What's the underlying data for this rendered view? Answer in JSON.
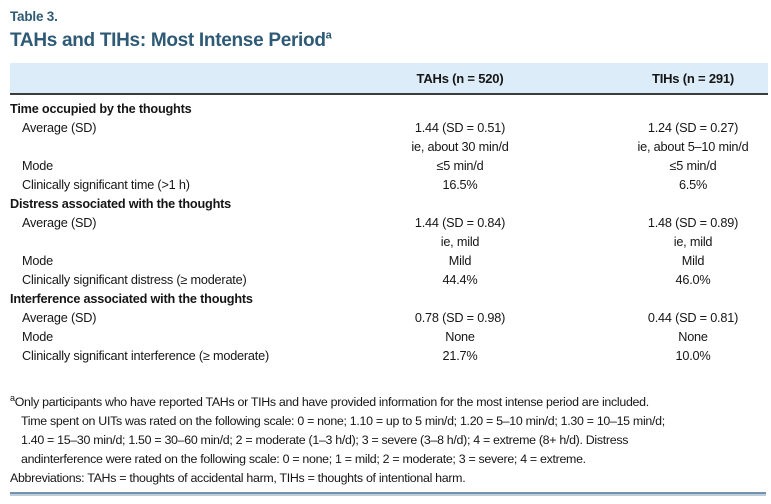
{
  "header": {
    "label": "Table 3.",
    "title": "TAHs and TIHs: Most Intense Period",
    "title_sup": "a"
  },
  "columns": {
    "tahs": "TAHs (n = 520)",
    "tihs": "TIHs (n = 291)"
  },
  "sections": [
    {
      "header": "Time occupied by the thoughts",
      "rows": [
        {
          "label": "Average (SD)",
          "tahs": "1.44 (SD = 0.51)",
          "tihs": "1.24 (SD = 0.27)"
        },
        {
          "label": "",
          "tahs": "ie, about 30 min/d",
          "tihs": "ie, about 5–10 min/d"
        },
        {
          "label": "Mode",
          "tahs": "≤5 min/d",
          "tihs": "≤5 min/d"
        },
        {
          "label": "Clinically significant time (>1 h)",
          "tahs": "16.5%",
          "tihs": "6.5%"
        }
      ]
    },
    {
      "header": "Distress associated with the thoughts",
      "rows": [
        {
          "label": "Average (SD)",
          "tahs": "1.44 (SD = 0.84)",
          "tihs": "1.48 (SD = 0.89)"
        },
        {
          "label": "",
          "tahs": "ie, mild",
          "tihs": "ie, mild"
        },
        {
          "label": "Mode",
          "tahs": "Mild",
          "tihs": "Mild"
        },
        {
          "label": "Clinically significant distress (≥ moderate)",
          "tahs": "44.4%",
          "tihs": "46.0%"
        }
      ]
    },
    {
      "header": "Interference associated with the thoughts",
      "rows": [
        {
          "label": "Average (SD)",
          "tahs": "0.78 (SD = 0.98)",
          "tihs": "0.44 (SD = 0.81)"
        },
        {
          "label": "Mode",
          "tahs": "None",
          "tihs": "None"
        },
        {
          "label": "Clinically significant interference (≥ moderate)",
          "tahs": "21.7%",
          "tihs": "10.0%"
        }
      ]
    }
  ],
  "footnotes": {
    "sup": "a",
    "lines": [
      "Only participants who have reported TAHs or TIHs and have provided information for the most intense period are included.",
      "Time spent on UITs was rated on the following scale: 0 = none; 1.10 = up to 5 min/d; 1.20 = 5–10 min/d; 1.30 = 10–15 min/d;",
      "1.40 = 15–30 min/d; 1.50 = 30–60 min/d; 2 = moderate (1–3 h/d); 3 = severe (3–8 h/d); 4 = extreme (8+ h/d). Distress",
      "andinterference were rated on the following scale: 0 = none; 1 = mild; 2 = moderate; 3 = severe; 4 = extreme.",
      "Abbreviations: TAHs = thoughts of accidental harm, TIHs = thoughts of intentional harm."
    ]
  },
  "colors": {
    "accent_teal": "#2f5a75",
    "header_band_blue": "#dcecf8",
    "rule_dark": "#3c3c3c",
    "rule_steel_blue": "#7293ab"
  }
}
